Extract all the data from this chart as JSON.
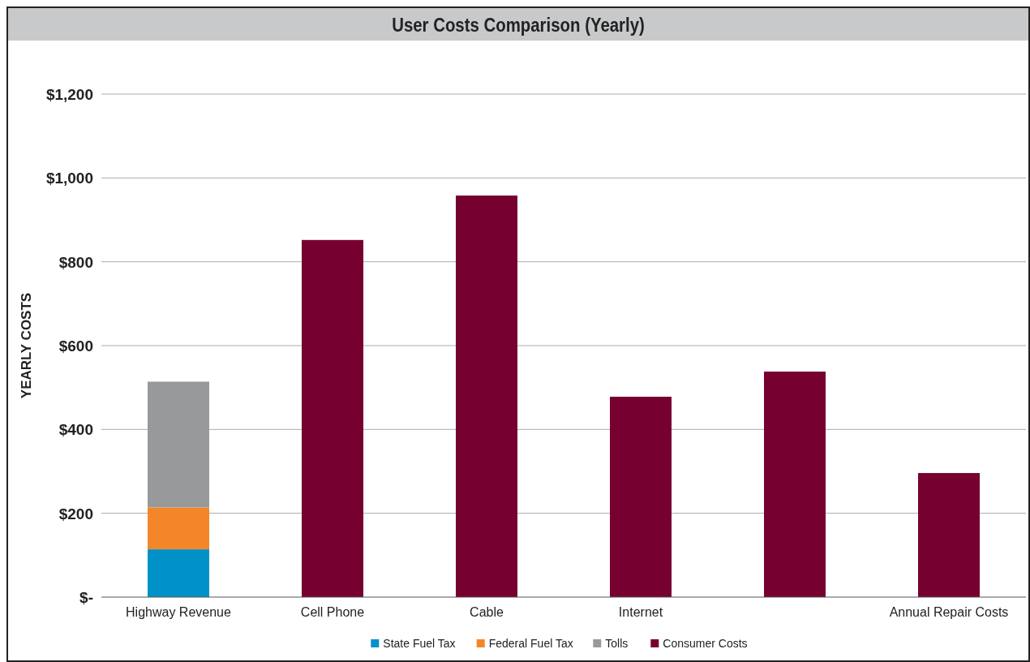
{
  "chart_data": {
    "type": "bar",
    "title": "User Costs Comparison (Yearly)",
    "ylabel": "YEARLY COSTS",
    "categories": [
      "Highway Revenue",
      "Cell Phone",
      "Cable",
      "Internet",
      null,
      "Annual Repair Costs"
    ],
    "stacked": true,
    "series": [
      {
        "name": "State Fuel Tax",
        "color": "#0091c9",
        "values": [
          114,
          null,
          null,
          null,
          null,
          null
        ]
      },
      {
        "name": "Federal Fuel Tax",
        "color": "#f4862a",
        "values": [
          100,
          null,
          null,
          null,
          null,
          null
        ]
      },
      {
        "name": "Tolls",
        "color": "#98999b",
        "values": [
          300,
          null,
          null,
          null,
          null,
          null
        ]
      },
      {
        "name": "Consumer Costs",
        "color": "#760030",
        "values": [
          null,
          852,
          958,
          478,
          538,
          296
        ]
      }
    ],
    "ylim": [
      0,
      1200
    ],
    "yticks": [
      {
        "value": 0,
        "label": "$-"
      },
      {
        "value": 200,
        "label": "$200"
      },
      {
        "value": 400,
        "label": "$400"
      },
      {
        "value": 600,
        "label": "$600"
      },
      {
        "value": 800,
        "label": "$800"
      },
      {
        "value": 1000,
        "label": "$1,000"
      },
      {
        "value": 1200,
        "label": "$1,200"
      }
    ],
    "grid": "y",
    "legend": "bottom"
  }
}
